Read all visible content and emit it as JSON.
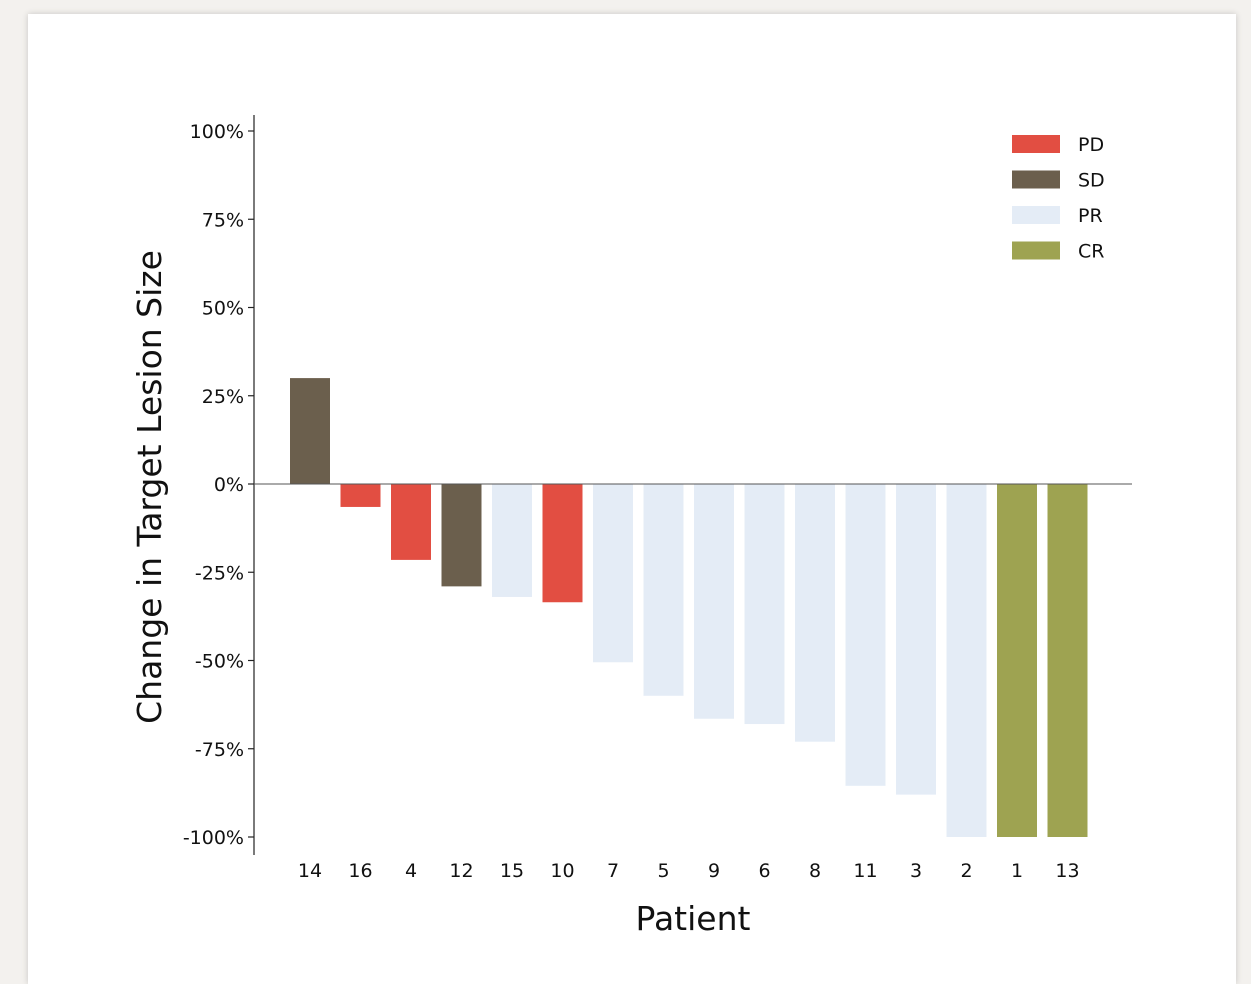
{
  "chart_data": {
    "type": "bar",
    "title": "",
    "xlabel": "Patient",
    "ylabel": "Change in Target Lesion Size",
    "ylim": [
      -100,
      100
    ],
    "yticks": [
      100,
      75,
      50,
      25,
      0,
      -25,
      -50,
      -75,
      -100
    ],
    "ytick_format": "percent",
    "grid": false,
    "legend_position": "top-right",
    "categories": [
      "14",
      "16",
      "4",
      "12",
      "15",
      "10",
      "7",
      "5",
      "9",
      "6",
      "8",
      "11",
      "3",
      "2",
      "1",
      "13"
    ],
    "values": [
      30,
      -6.5,
      -21.5,
      -29,
      -32,
      -33.5,
      -50.5,
      -60,
      -66.5,
      -68,
      -73,
      -85.5,
      -88,
      -100,
      -100,
      -100
    ],
    "response": [
      "SD",
      "PD",
      "PD",
      "SD",
      "PR",
      "PD",
      "PR",
      "PR",
      "PR",
      "PR",
      "PR",
      "PR",
      "PR",
      "PR",
      "CR",
      "CR"
    ],
    "legend": [
      {
        "label": "PD",
        "color": "#e24e42"
      },
      {
        "label": "SD",
        "color": "#6b5f4d"
      },
      {
        "label": "PR",
        "color": "#e4ecf6"
      },
      {
        "label": "CR",
        "color": "#9ea351"
      }
    ]
  }
}
